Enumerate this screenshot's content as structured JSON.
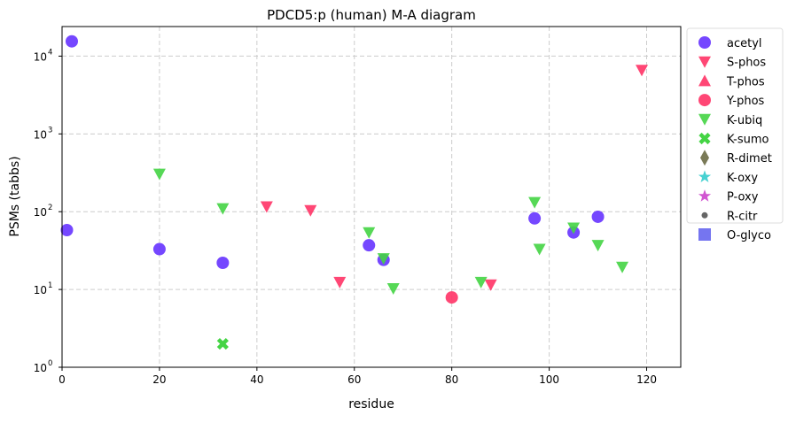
{
  "chart_data": {
    "type": "scatter",
    "title": "PDCD5:p (human) M-A diagram",
    "xlabel": "residue",
    "ylabel": "PSMs (tabbs)",
    "xlim": [
      0,
      127
    ],
    "ylim": [
      1,
      24000
    ],
    "yscale": "log",
    "grid": true,
    "legend_placement": "outside-right",
    "xticks": [
      "0",
      "20",
      "40",
      "60",
      "80",
      "100",
      "120"
    ],
    "xtick_values": [
      0,
      20,
      40,
      60,
      80,
      100,
      120
    ],
    "yticks": [
      "10",
      "10",
      "10",
      "10",
      "10"
    ],
    "ytick_exponents": [
      "0",
      "1",
      "2",
      "3",
      "4"
    ],
    "ytick_values": [
      1,
      10,
      100,
      1000,
      10000
    ],
    "series": [
      {
        "name": "acetyl",
        "marker": "circle",
        "color": "#6633ff",
        "points": [
          [
            2,
            15500
          ],
          [
            1,
            58
          ],
          [
            20,
            33
          ],
          [
            33,
            22
          ],
          [
            63,
            37
          ],
          [
            66,
            24
          ],
          [
            97,
            82
          ],
          [
            105,
            54
          ],
          [
            110,
            86
          ]
        ]
      },
      {
        "name": "S-phos",
        "marker": "triangle-down",
        "color": "#ff3366",
        "points": [
          [
            42,
            116
          ],
          [
            51,
            104
          ],
          [
            57,
            12.4
          ],
          [
            88,
            11.5
          ],
          [
            119,
            6600
          ]
        ]
      },
      {
        "name": "T-phos",
        "marker": "triangle-up",
        "color": "#ff3366",
        "points": []
      },
      {
        "name": "Y-phos",
        "marker": "circle",
        "color": "#ff3366",
        "points": [
          [
            80,
            7.9
          ]
        ]
      },
      {
        "name": "K-ubiq",
        "marker": "triangle-down",
        "color": "#44d444",
        "points": [
          [
            20,
            305
          ],
          [
            33,
            110
          ],
          [
            63,
            54
          ],
          [
            66,
            25
          ],
          [
            68,
            10.3
          ],
          [
            86,
            12.4
          ],
          [
            97,
            132
          ],
          [
            98,
            33
          ],
          [
            105,
            62
          ],
          [
            110,
            37
          ],
          [
            115,
            19.4
          ]
        ]
      },
      {
        "name": "K-sumo",
        "marker": "x",
        "color": "#44d444",
        "points": [
          [
            33,
            2.0
          ]
        ]
      },
      {
        "name": "R-dimet",
        "marker": "diamond",
        "color": "#6b6b45",
        "points": []
      },
      {
        "name": "K-oxy",
        "marker": "star",
        "color": "#33cccc",
        "points": []
      },
      {
        "name": "P-oxy",
        "marker": "star",
        "color": "#cc44cc",
        "points": []
      },
      {
        "name": "R-citr",
        "marker": "dot",
        "color": "#666666",
        "points": []
      },
      {
        "name": "O-glyco",
        "marker": "square",
        "color": "#6666ee",
        "points": []
      }
    ]
  }
}
